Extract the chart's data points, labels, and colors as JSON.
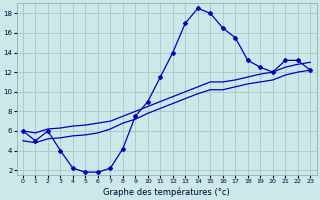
{
  "xlabel": "Graphe des températures (°c)",
  "bg_color": "#cce8e8",
  "grid_color": "#aacccc",
  "line_color": "#0000bb",
  "xlim": [
    -0.5,
    23.5
  ],
  "ylim": [
    1.5,
    19.0
  ],
  "yticks": [
    2,
    4,
    6,
    8,
    10,
    12,
    14,
    16,
    18
  ],
  "xticks": [
    0,
    1,
    2,
    3,
    4,
    5,
    6,
    7,
    8,
    9,
    10,
    11,
    12,
    13,
    14,
    15,
    16,
    17,
    18,
    19,
    20,
    21,
    22,
    23
  ],
  "line1_x": [
    0,
    1,
    2,
    3,
    4,
    5,
    6,
    7,
    8,
    9,
    10,
    11,
    12,
    13,
    14,
    15,
    16,
    17,
    18,
    19,
    20,
    21,
    22,
    23
  ],
  "line1_y": [
    6.0,
    5.0,
    6.0,
    4.0,
    2.2,
    1.8,
    1.8,
    2.2,
    4.2,
    7.5,
    9.0,
    11.5,
    14.0,
    17.0,
    18.5,
    18.0,
    16.5,
    15.5,
    13.2,
    12.5,
    12.0,
    13.2,
    13.2,
    12.2
  ],
  "line2_x": [
    0,
    1,
    2,
    3,
    4,
    5,
    6,
    7,
    8,
    9,
    10,
    11,
    12,
    13,
    14,
    15,
    16,
    17,
    18,
    19,
    20,
    21,
    22,
    23
  ],
  "line2_y": [
    6.0,
    5.8,
    6.2,
    6.3,
    6.5,
    6.6,
    6.8,
    7.0,
    7.5,
    8.0,
    8.5,
    9.0,
    9.5,
    10.0,
    10.5,
    11.0,
    11.0,
    11.2,
    11.5,
    11.8,
    12.0,
    12.5,
    12.8,
    13.0
  ],
  "line3_x": [
    0,
    1,
    2,
    3,
    4,
    5,
    6,
    7,
    8,
    9,
    10,
    11,
    12,
    13,
    14,
    15,
    16,
    17,
    18,
    19,
    20,
    21,
    22,
    23
  ],
  "line3_y": [
    5.0,
    4.8,
    5.2,
    5.3,
    5.5,
    5.6,
    5.8,
    6.2,
    6.8,
    7.2,
    7.8,
    8.3,
    8.8,
    9.3,
    9.8,
    10.2,
    10.2,
    10.5,
    10.8,
    11.0,
    11.2,
    11.7,
    12.0,
    12.2
  ]
}
